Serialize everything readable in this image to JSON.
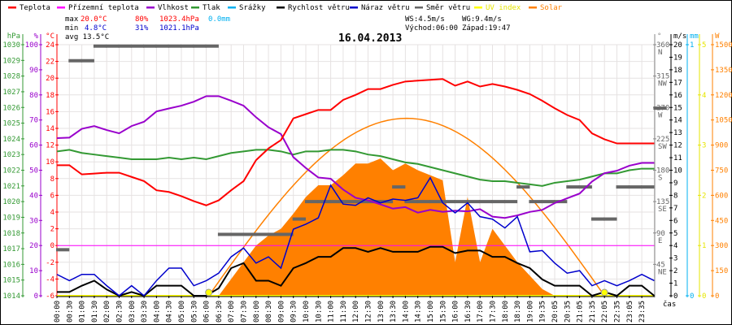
{
  "chart_data": {
    "type": "line",
    "title": "16.04.2013",
    "xlabel": "čas",
    "legend": [
      {
        "name": "Teplota",
        "color": "#ff0000"
      },
      {
        "name": "Přízemní teplota",
        "color": "#ff00ff"
      },
      {
        "name": "Vlhkost",
        "color": "#9900cc"
      },
      {
        "name": "Tlak",
        "color": "#339933"
      },
      {
        "name": "Srážky",
        "color": "#00b0f0"
      },
      {
        "name": "Rychlost větru",
        "color": "#000000"
      },
      {
        "name": "Náraz větru",
        "color": "#0000cc"
      },
      {
        "name": "Směr větru",
        "color": "#666666"
      },
      {
        "name": "UV index",
        "color": "#ffff00"
      },
      {
        "name": "Solar",
        "color": "#ff8000"
      }
    ],
    "legend_placement": "top",
    "grid": true,
    "stats": {
      "max_label": "max",
      "max_temp": "20.0°C",
      "max_hum": "80%",
      "max_press": "1023.4hPa",
      "rain": "0.0mm",
      "min_label": "min",
      "min_temp": "4.8°C",
      "min_hum": "31%",
      "min_press": "1021.1hPa",
      "avg": "avg 13.5°C",
      "ws": "WS:4.5m/s",
      "wg": "WG:9.4m/s",
      "sunrise": "Východ:06:00",
      "sunset": "Západ:19:47"
    },
    "x_ticks": [
      "00:00",
      "00:30",
      "01:00",
      "01:30",
      "02:00",
      "02:30",
      "03:00",
      "03:30",
      "04:00",
      "04:30",
      "05:00",
      "05:30",
      "06:00",
      "06:30",
      "07:00",
      "07:30",
      "08:00",
      "08:30",
      "09:00",
      "09:30",
      "10:00",
      "10:30",
      "11:00",
      "11:30",
      "12:00",
      "12:30",
      "13:00",
      "13:30",
      "14:00",
      "14:30",
      "15:00",
      "15:30",
      "16:00",
      "16:30",
      "17:00",
      "17:30",
      "18:00",
      "18:30",
      "19:00",
      "19:35",
      "20:05",
      "20:35",
      "21:05",
      "21:35",
      "22:05",
      "22:35",
      "23:05",
      "23:35"
    ],
    "axes": {
      "pressure": {
        "unit": "hPa",
        "range": [
          1014,
          1030
        ],
        "ticks": [
          1014,
          1015,
          1016,
          1017,
          1018,
          1019,
          1020,
          1021,
          1022,
          1023,
          1024,
          1025,
          1026,
          1027,
          1028,
          1029,
          1030
        ]
      },
      "humidity": {
        "unit": "%",
        "range": [
          0,
          100
        ],
        "ticks": [
          0,
          10,
          20,
          30,
          40,
          50,
          60,
          70,
          80,
          90,
          100
        ]
      },
      "temperature": {
        "unit": "°C",
        "range": [
          -6,
          24
        ],
        "ticks": [
          -6,
          -4,
          -2,
          0,
          2,
          4,
          6,
          8,
          10,
          12,
          14,
          16,
          18,
          20,
          22,
          24
        ]
      },
      "direction": {
        "unit": "°",
        "range": [
          0,
          360
        ],
        "ticks": [
          45,
          90,
          135,
          180,
          225,
          270,
          315,
          360
        ],
        "compass": [
          "NE",
          "E",
          "SE",
          "S",
          "SW",
          "W",
          "NW",
          "N"
        ]
      },
      "wind": {
        "unit": "m/s",
        "range": [
          0,
          20
        ],
        "ticks": [
          0,
          1,
          2,
          3,
          4,
          5,
          6,
          7,
          8,
          9,
          10,
          11,
          12,
          13,
          14,
          15,
          16,
          17,
          18,
          19,
          20
        ]
      },
      "rain": {
        "unit": "mm",
        "range": [
          0,
          1
        ],
        "ticks": [
          0,
          1
        ]
      },
      "uv": {
        "unit": "",
        "range": [
          0,
          5
        ],
        "ticks": [
          0,
          1,
          2,
          3,
          4,
          5
        ]
      },
      "solar": {
        "unit": "W",
        "range": [
          0,
          1500
        ],
        "ticks": [
          0,
          150,
          300,
          450,
          600,
          750,
          900,
          1050,
          1200,
          1350,
          1500
        ]
      }
    },
    "series": [
      {
        "name": "Teplota",
        "axis": "temperature",
        "color": "#ff0000",
        "values": [
          9.6,
          9.6,
          8.5,
          8.6,
          8.7,
          8.7,
          8.2,
          7.7,
          6.6,
          6.4,
          5.9,
          5.3,
          4.8,
          5.4,
          6.6,
          7.7,
          10.2,
          11.6,
          12.6,
          15.2,
          15.7,
          16.2,
          16.2,
          17.4,
          18.0,
          18.7,
          18.7,
          19.2,
          19.6,
          19.7,
          19.8,
          19.9,
          19.1,
          19.6,
          19.0,
          19.3,
          19.0,
          18.6,
          18.1,
          17.3,
          16.4,
          15.6,
          15.0,
          13.4,
          12.7,
          12.2,
          12.2,
          12.2,
          12.2
        ]
      },
      {
        "name": "Přízemní teplota",
        "axis": "temperature",
        "color": "#ff00ff",
        "values": [
          0,
          0,
          0,
          0,
          0,
          0,
          0,
          0,
          0,
          0,
          0,
          0,
          0,
          0,
          0,
          0,
          0,
          0,
          0,
          0,
          0,
          0,
          0,
          0,
          0,
          0,
          0,
          0,
          0,
          0,
          0,
          0,
          0,
          0,
          0,
          0,
          0,
          0,
          0,
          0,
          0,
          0,
          0,
          0,
          0,
          0,
          0,
          0,
          0
        ]
      },
      {
        "name": "Vlhkost",
        "axis": "humidity",
        "color": "#9900cc",
        "values": [
          62.8,
          63,
          66.5,
          67.6,
          66,
          64.7,
          67.6,
          69.3,
          73.4,
          74.6,
          75.7,
          77.3,
          79.5,
          79.5,
          77.7,
          75.7,
          71.1,
          67.1,
          64.4,
          55.2,
          50.9,
          47.1,
          46.6,
          42.3,
          39,
          38,
          36.4,
          34.7,
          35.3,
          33.1,
          34.2,
          33.4,
          33.9,
          33.6,
          34.5,
          31.5,
          31,
          32,
          33.4,
          34.2,
          36.9,
          38.8,
          40.7,
          45.5,
          48.8,
          49.8,
          51.8,
          52.9,
          52.9
        ]
      },
      {
        "name": "Tlak",
        "axis": "pressure",
        "color": "#339933",
        "values": [
          1023.2,
          1023.3,
          1023.1,
          1023.0,
          1022.9,
          1022.8,
          1022.7,
          1022.7,
          1022.7,
          1022.8,
          1022.7,
          1022.8,
          1022.7,
          1022.9,
          1023.1,
          1023.2,
          1023.3,
          1023.3,
          1023.2,
          1023.0,
          1023.2,
          1023.2,
          1023.3,
          1023.3,
          1023.2,
          1023.0,
          1022.9,
          1022.7,
          1022.5,
          1022.4,
          1022.2,
          1022.0,
          1021.8,
          1021.6,
          1021.4,
          1021.3,
          1021.3,
          1021.2,
          1021.1,
          1021.0,
          1021.2,
          1021.3,
          1021.4,
          1021.6,
          1021.8,
          1021.8,
          1022.0,
          1022.1,
          1022.1
        ]
      },
      {
        "name": "Srážky",
        "axis": "rain",
        "color": "#00b0f0",
        "values": [
          0,
          0,
          0,
          0,
          0,
          0,
          0,
          0,
          0,
          0,
          0,
          0,
          0,
          0,
          0,
          0,
          0,
          0,
          0,
          0,
          0,
          0,
          0,
          0,
          0,
          0,
          0,
          0,
          0,
          0,
          0,
          0,
          0,
          0,
          0,
          0,
          0,
          0,
          0,
          0,
          0,
          0,
          0,
          0,
          0,
          0,
          0,
          0,
          0
        ]
      },
      {
        "name": "Rychlost větru",
        "axis": "wind",
        "color": "#000000",
        "values": [
          0.3,
          0.3,
          0.8,
          1.2,
          0.5,
          0,
          0.3,
          0,
          0.8,
          0.8,
          0.8,
          0,
          0,
          0.6,
          2.2,
          2.6,
          1.2,
          1.2,
          0.8,
          2.2,
          2.6,
          3.1,
          3.1,
          3.8,
          3.8,
          3.5,
          3.8,
          3.5,
          3.5,
          3.5,
          3.9,
          3.9,
          3.4,
          3.6,
          3.6,
          3.1,
          3.1,
          2.6,
          2.2,
          1.3,
          0.8,
          0.8,
          0.8,
          0,
          0.3,
          0,
          0.8,
          0.8,
          0
        ]
      },
      {
        "name": "Náraz větru",
        "axis": "wind",
        "color": "#0000cc",
        "values": [
          1.7,
          1.2,
          1.7,
          1.7,
          0.8,
          0,
          0.8,
          0,
          1.2,
          2.2,
          2.2,
          0.8,
          1.2,
          1.8,
          3.1,
          3.8,
          2.6,
          3.1,
          2.2,
          5.3,
          5.7,
          6.2,
          8.8,
          7.3,
          7.2,
          7.8,
          7.4,
          7.7,
          7.6,
          7.8,
          9.4,
          7.4,
          6.6,
          7.4,
          6.3,
          6.1,
          5.4,
          6.3,
          3.5,
          3.6,
          2.6,
          1.8,
          2.0,
          0.8,
          1.2,
          0.8,
          1.2,
          1.7,
          1.2
        ]
      },
      {
        "name": "Směr větru",
        "axis": "direction",
        "color": "#666666",
        "values": [
          66,
          337,
          337,
          358,
          358,
          358,
          358,
          358,
          358,
          358,
          358,
          358,
          358,
          88,
          88,
          88,
          88,
          88,
          88,
          110,
          135,
          135,
          135,
          135,
          135,
          135,
          135,
          156,
          135,
          135,
          135,
          135,
          135,
          135,
          135,
          135,
          135,
          156,
          135,
          135,
          135,
          156,
          156,
          110,
          110,
          156,
          156,
          156,
          269
        ]
      },
      {
        "name": "UV index",
        "axis": "uv",
        "color": "#ffff00",
        "values": [
          0,
          0,
          0,
          0,
          0,
          0,
          0,
          0,
          0,
          0,
          0,
          0,
          0,
          0,
          0,
          0,
          0,
          0,
          0,
          0,
          0,
          0,
          0,
          0,
          0,
          0,
          0,
          0,
          0,
          0,
          0,
          0,
          0,
          0,
          0,
          0,
          0,
          0,
          0,
          0,
          0,
          0,
          0,
          0,
          0,
          0,
          0,
          0,
          0
        ]
      },
      {
        "name": "Solar",
        "axis": "solar",
        "color": "#ff8000",
        "type": "area",
        "values": [
          0,
          0,
          0,
          0,
          0,
          0,
          0,
          0,
          0,
          0,
          0,
          0,
          0,
          0,
          100,
          200,
          300,
          360,
          400,
          490,
          590,
          660,
          660,
          720,
          790,
          790,
          820,
          750,
          790,
          750,
          720,
          690,
          200,
          590,
          200,
          400,
          300,
          200,
          120,
          40,
          0,
          0,
          0,
          0,
          0,
          0,
          0,
          0,
          0
        ]
      }
    ],
    "theoretical_solar_peak": 1060,
    "sun_markers": [
      "06:00",
      "19:47"
    ]
  }
}
